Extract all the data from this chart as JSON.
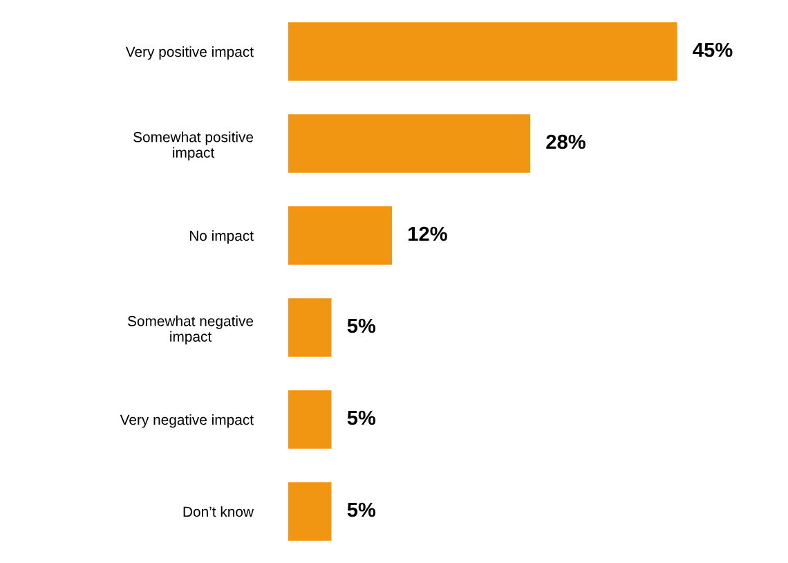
{
  "chart_data": {
    "type": "bar",
    "orientation": "horizontal",
    "tick_labels": "y",
    "categories": [
      "Very positive impact",
      "Somewhat positive\nimpact",
      "No impact",
      "Somewhat negative\nimpact",
      "Very negative impact",
      "Don’t know"
    ],
    "values": [
      45,
      28,
      12,
      5,
      5,
      5
    ],
    "value_labels": [
      "45%",
      "28%",
      "12%",
      "5%",
      "5%",
      "5%"
    ],
    "color": "#f09613",
    "grid": false,
    "legend": false
  }
}
